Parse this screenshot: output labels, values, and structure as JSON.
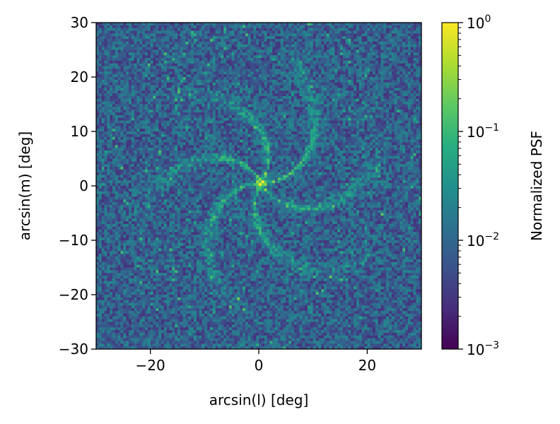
{
  "chart_data": {
    "type": "heatmap",
    "title": "",
    "xlabel": "arcsin(l) [deg]",
    "ylabel": "arcsin(m) [deg]",
    "xlim": [
      -30,
      30
    ],
    "ylim": [
      -30,
      30
    ],
    "xticks": [
      -20,
      0,
      20
    ],
    "yticks": [
      30,
      20,
      10,
      0,
      -10,
      -20,
      -30
    ],
    "xtick_labels": [
      "−20",
      "0",
      "20"
    ],
    "ytick_labels": [
      "30",
      "20",
      "10",
      "0",
      "−10",
      "−20",
      "−30"
    ],
    "colormap": "viridis",
    "grid": false,
    "peak": {
      "x": 0.5,
      "y": 0.5,
      "value": 1.0
    },
    "pattern": "spiral sidelobes around central peak, noisy background near 1e-3 to 1e-2",
    "colorbar": {
      "label": "Normalized PSF",
      "scale": "log",
      "range": [
        0.001,
        1
      ],
      "ticks": [
        1,
        0.1,
        0.01,
        0.001
      ],
      "tick_base": [
        "10",
        "10",
        "10",
        "10"
      ],
      "tick_exponents": [
        "0",
        "−1",
        "−2",
        "−3"
      ]
    }
  }
}
